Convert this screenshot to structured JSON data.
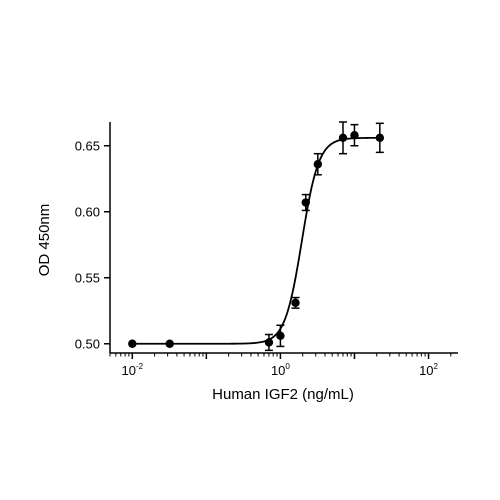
{
  "chart_data": {
    "type": "scatter",
    "title": "",
    "xlabel": "Human IGF2 (ng/mL)",
    "ylabel": "OD 450nm",
    "x_scale": "log",
    "xlim": [
      0.005,
      250
    ],
    "ylim": [
      0.493,
      0.668
    ],
    "grid": false,
    "legend": "none",
    "x_tick_labels": [
      {
        "value": 0.01,
        "base": "10",
        "exp": "-2"
      },
      {
        "value": 1,
        "base": "10",
        "exp": "0"
      },
      {
        "value": 100,
        "base": "10",
        "exp": "2"
      }
    ],
    "y_ticks": [
      0.5,
      0.55,
      0.6,
      0.65
    ],
    "y_tick_labels": [
      "0.50",
      "0.55",
      "0.60",
      "0.65"
    ],
    "series": [
      {
        "points": [
          {
            "x": 0.01,
            "y": 0.5,
            "err": 0.0
          },
          {
            "x": 0.032,
            "y": 0.5,
            "err": 0.0
          },
          {
            "x": 0.7,
            "y": 0.501,
            "err": 0.006
          },
          {
            "x": 1.0,
            "y": 0.506,
            "err": 0.008
          },
          {
            "x": 1.6,
            "y": 0.531,
            "err": 0.004
          },
          {
            "x": 2.2,
            "y": 0.607,
            "err": 0.006
          },
          {
            "x": 3.2,
            "y": 0.636,
            "err": 0.008
          },
          {
            "x": 7.0,
            "y": 0.656,
            "err": 0.012
          },
          {
            "x": 10.0,
            "y": 0.658,
            "err": 0.008
          },
          {
            "x": 22.0,
            "y": 0.656,
            "err": 0.011
          }
        ],
        "fit": {
          "model": "4PL",
          "bottom": 0.5,
          "top": 0.656,
          "ec50": 1.95,
          "hill": 3.8
        }
      }
    ]
  }
}
